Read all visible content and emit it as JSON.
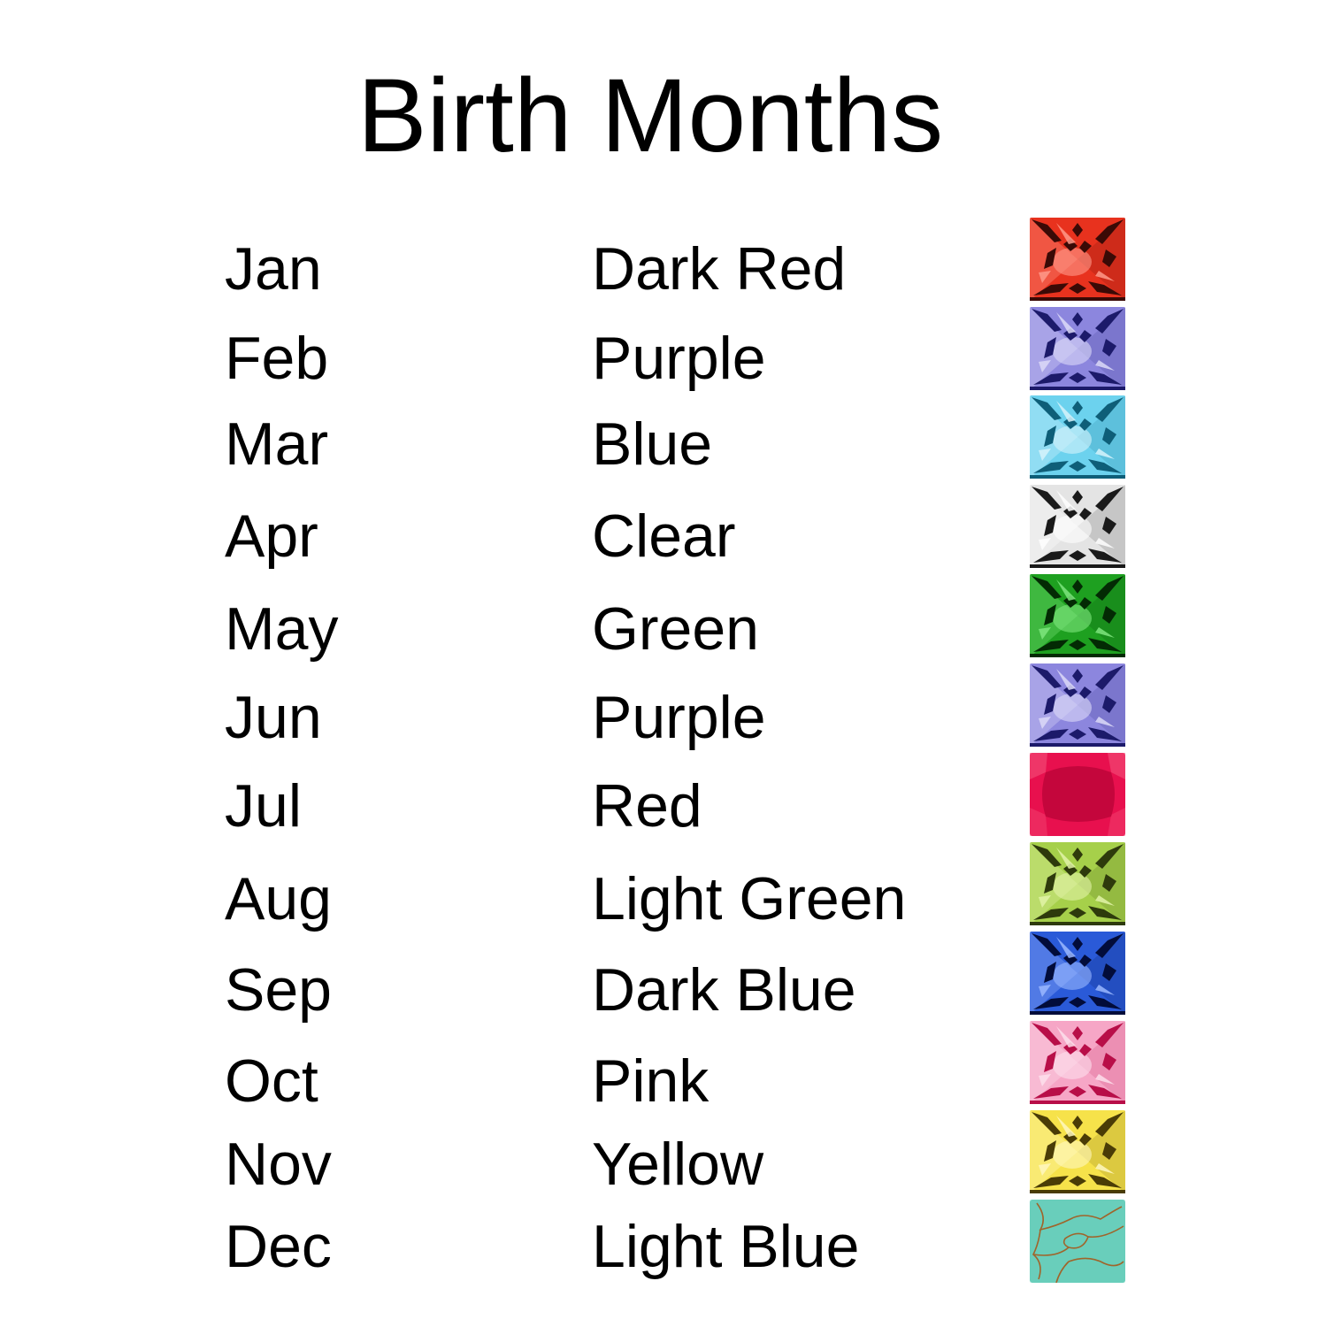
{
  "title": "Birth Months",
  "rows": [
    {
      "month": "Jan",
      "color": "Dark Red",
      "gem": {
        "style": "faceted",
        "base": "#e8321e",
        "dark": "#3a0a06",
        "light": "#ff9a8a"
      }
    },
    {
      "month": "Feb",
      "color": "Purple",
      "gem": {
        "style": "faceted",
        "base": "#8c86de",
        "dark": "#1c1a6a",
        "light": "#dcdaf8"
      }
    },
    {
      "month": "Mar",
      "color": "Blue",
      "gem": {
        "style": "faceted",
        "base": "#6cd2ee",
        "dark": "#0e5e78",
        "light": "#d6f4fc"
      }
    },
    {
      "month": "Apr",
      "color": "Clear",
      "gem": {
        "style": "faceted",
        "base": "#e4e4e4",
        "dark": "#1a1a1a",
        "light": "#ffffff"
      }
    },
    {
      "month": "May",
      "color": "Green",
      "gem": {
        "style": "faceted",
        "base": "#1ea020",
        "dark": "#032a04",
        "light": "#7ee67e"
      }
    },
    {
      "month": "Jun",
      "color": "Purple",
      "gem": {
        "style": "faceted",
        "base": "#8c86de",
        "dark": "#1c1a6a",
        "light": "#dcdaf8"
      }
    },
    {
      "month": "Jul",
      "color": "Red",
      "gem": {
        "style": "cushion",
        "base": "#e8104e",
        "dark": "#c4063c",
        "light": "#f4507a"
      }
    },
    {
      "month": "Aug",
      "color": "Light Green",
      "gem": {
        "style": "faceted",
        "base": "#a6d04a",
        "dark": "#2e3a0c",
        "light": "#e2f4a8"
      }
    },
    {
      "month": "Sep",
      "color": "Dark Blue",
      "gem": {
        "style": "faceted",
        "base": "#2a5ad8",
        "dark": "#020c3a",
        "light": "#9ab8ff"
      }
    },
    {
      "month": "Oct",
      "color": "Pink",
      "gem": {
        "style": "faceted",
        "base": "#f6a6c6",
        "dark": "#b80e48",
        "light": "#fde0ec"
      }
    },
    {
      "month": "Nov",
      "color": "Yellow",
      "gem": {
        "style": "faceted",
        "base": "#f6e24a",
        "dark": "#4a3c06",
        "light": "#fff8c0"
      }
    },
    {
      "month": "Dec",
      "color": "Light Blue",
      "gem": {
        "style": "turquoise",
        "base": "#5cc8b4",
        "dark": "#a0642a",
        "light": "#8ee0d0"
      }
    }
  ]
}
